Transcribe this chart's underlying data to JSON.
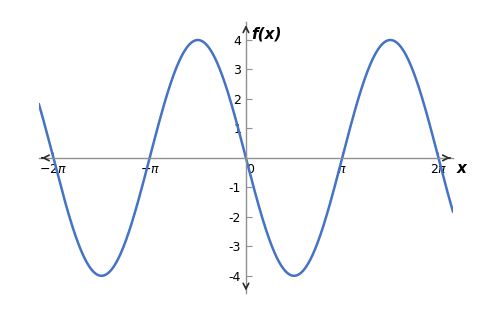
{
  "title": "f(x)",
  "xlabel": "x",
  "curve_color": "#4472c4",
  "curve_linewidth": 1.8,
  "x_min": -2.15,
  "x_max": 2.15,
  "y_min": -4.6,
  "y_max": 4.6,
  "amplitude": -4,
  "x_ticks_pi": [
    -2,
    -1,
    0,
    1,
    2
  ],
  "y_ticks": [
    -4,
    -3,
    -2,
    -1,
    1,
    2,
    3,
    4
  ],
  "background_color": "#ffffff",
  "axis_color": "#2d2d2d",
  "spine_color": "#909090",
  "tick_color": "#909090"
}
